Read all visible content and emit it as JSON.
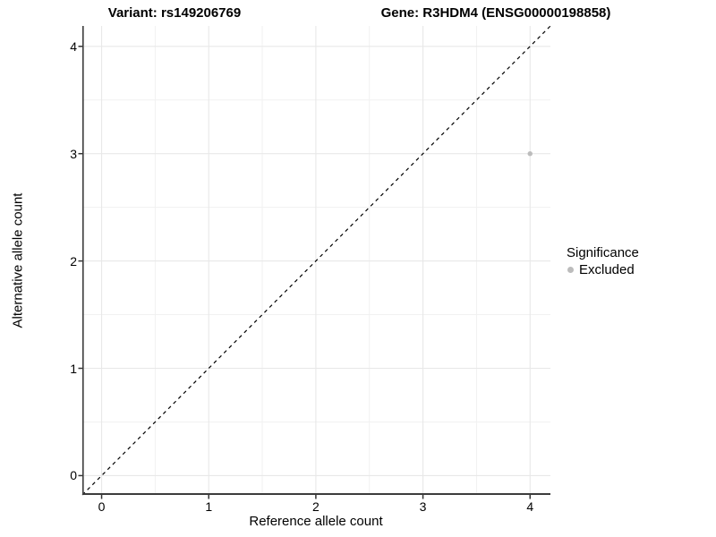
{
  "chart_data": {
    "type": "scatter",
    "title_left": "Variant: rs149206769",
    "title_right": "Gene: R3HDM4 (ENSG00000198858)",
    "xlabel": "Reference allele count",
    "ylabel": "Alternative allele count",
    "xlim": [
      -0.18,
      4.19
    ],
    "ylim": [
      -0.18,
      4.19
    ],
    "x_ticks": [
      0,
      1,
      2,
      3,
      4
    ],
    "y_ticks": [
      0,
      1,
      2,
      3,
      4
    ],
    "x_minor_ticks": [
      0.5,
      1.5,
      2.5,
      3.5
    ],
    "y_minor_ticks": [
      0.5,
      1.5,
      2.5,
      3.5
    ],
    "grid": "major and minor gridlines, white background",
    "reference_line": {
      "type": "identity y=x",
      "style": "dashed",
      "color": "#000000"
    },
    "series": [
      {
        "name": "Excluded",
        "color": "#bcbcbc",
        "points": [
          {
            "x": 4,
            "y": 3
          }
        ]
      }
    ],
    "legend": {
      "title": "Significance",
      "position": "right",
      "entries": [
        {
          "label": "Excluded",
          "color": "#bcbcbc"
        }
      ]
    }
  },
  "colors": {
    "point": "#bcbcbc",
    "grid_major": "#e8e8e8",
    "grid_minor": "#f1f1f1",
    "axis_line": "#3c3c3c",
    "tick_mark": "#333333",
    "text": "#000000",
    "background": "#ffffff"
  }
}
